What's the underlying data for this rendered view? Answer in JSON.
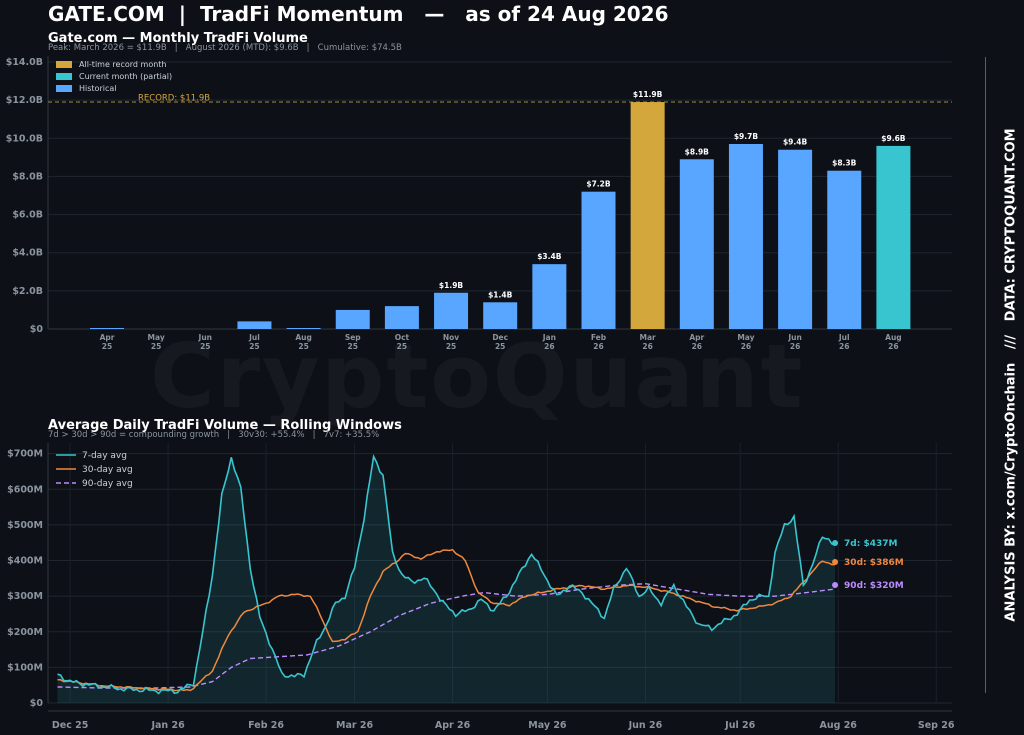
{
  "header": {
    "title": "GATE.COM  |  TradFi Momentum   —   as of 24 Aug 2026",
    "side_text": "ANALYSIS BY: x.com/CryptoOnchain   ///   DATA: CRYPTOQUANT.COM",
    "watermark": "CryptoQuant"
  },
  "colors": {
    "background": "#0d1117",
    "historical": "#58a6ff",
    "record": "#d4a73c",
    "current": "#39c5cf",
    "ma7": "#39c5cf",
    "ma30": "#f0883e",
    "ma90": "#bc8cff"
  },
  "chart_data": [
    {
      "type": "bar",
      "title": "Gate.com — Monthly TradFi Volume",
      "subtitle": "Peak: March 2026 = $11.9B   |   August 2026 (MTD): $9.6B   |   Cumulative: $74.5B",
      "categories": [
        "Apr 25",
        "May 25",
        "Jun 25",
        "Jul 25",
        "Aug 25",
        "Sep 25",
        "Oct 25",
        "Nov 25",
        "Dec 25",
        "Jan 26",
        "Feb 26",
        "Mar 26",
        "Apr 26",
        "May 26",
        "Jun 26",
        "Jul 26",
        "Aug 26"
      ],
      "values": [
        0.04,
        0.0,
        0.0,
        0.4,
        0.05,
        1.0,
        1.2,
        1.9,
        1.4,
        3.4,
        7.2,
        11.9,
        8.9,
        9.7,
        9.4,
        8.3,
        9.6
      ],
      "data_labels": [
        "",
        "",
        "",
        "",
        "",
        "",
        "",
        "$1.9B",
        "$1.4B",
        "$3.4B",
        "$7.2B",
        "$11.9B",
        "$8.9B",
        "$9.7B",
        "$9.4B",
        "$8.3B",
        "$9.6B"
      ],
      "bar_kind": [
        "historical",
        "historical",
        "historical",
        "historical",
        "historical",
        "historical",
        "historical",
        "historical",
        "historical",
        "historical",
        "historical",
        "record",
        "historical",
        "historical",
        "historical",
        "historical",
        "current"
      ],
      "ylim": [
        0,
        14
      ],
      "yticks": [
        0,
        2,
        4,
        6,
        8,
        10,
        12,
        14
      ],
      "ytick_labels": [
        "$0",
        "$2.0B",
        "$4.0B",
        "$6.0B",
        "$8.0B",
        "$10.0B",
        "$12.0B",
        "$14.0B"
      ],
      "record_line": {
        "value": 11.9,
        "label": "RECORD: $11.9B"
      },
      "legend": [
        "All-time record month",
        "Current month (partial)",
        "Historical"
      ],
      "legend_position": "top-left",
      "grid": true
    },
    {
      "type": "line",
      "title": "Average Daily TradFi Volume — Rolling Windows",
      "subtitle": "7d > 30d > 90d = compounding growth   |   30v30: +55.4%   |   7v7: +35.5%",
      "x_start": "2025-12-21",
      "x_end": "2026-08-24",
      "xlim": [
        "2025-12-18",
        "2026-09-30"
      ],
      "xticks": [
        "2025-12-25",
        "2026-01-25",
        "2026-02-25",
        "2026-03-25",
        "2026-04-25",
        "2026-05-25",
        "2026-06-25",
        "2026-07-25",
        "2026-08-25",
        "2026-09-25"
      ],
      "xtick_labels": [
        "Dec 25",
        "Jan 26",
        "Feb 26",
        "Mar 26",
        "Apr 26",
        "May 26",
        "Jun 26",
        "Jul 26",
        "Aug 26",
        "Sep 26"
      ],
      "ylim": [
        0,
        730
      ],
      "yticks": [
        0,
        100,
        200,
        300,
        400,
        500,
        600,
        700
      ],
      "ytick_labels": [
        "$0",
        "$100M",
        "$200M",
        "$300M",
        "$400M",
        "$500M",
        "$600M",
        "$700M"
      ],
      "grid": true,
      "legend_position": "top-left",
      "series": [
        {
          "name": "7-day avg",
          "end_label": "7d: $437M",
          "keypoints": [
            [
              "2025-12-21",
              80
            ],
            [
              "2025-12-25",
              60
            ],
            [
              "2026-01-01",
              50
            ],
            [
              "2026-01-10",
              40
            ],
            [
              "2026-01-20",
              35
            ],
            [
              "2026-01-28",
              33
            ],
            [
              "2026-02-02",
              55
            ],
            [
              "2026-02-05",
              200
            ],
            [
              "2026-02-08",
              360
            ],
            [
              "2026-02-11",
              580
            ],
            [
              "2026-02-14",
              690
            ],
            [
              "2026-02-17",
              600
            ],
            [
              "2026-02-20",
              380
            ],
            [
              "2026-02-23",
              240
            ],
            [
              "2026-02-27",
              150
            ],
            [
              "2026-03-02",
              80
            ],
            [
              "2026-03-06",
              75
            ],
            [
              "2026-03-09",
              80
            ],
            [
              "2026-03-13",
              170
            ],
            [
              "2026-03-16",
              220
            ],
            [
              "2026-03-19",
              280
            ],
            [
              "2026-03-22",
              300
            ],
            [
              "2026-03-25",
              380
            ],
            [
              "2026-03-28",
              520
            ],
            [
              "2026-03-31",
              690
            ],
            [
              "2026-04-03",
              640
            ],
            [
              "2026-04-06",
              420
            ],
            [
              "2026-04-09",
              360
            ],
            [
              "2026-04-12",
              340
            ],
            [
              "2026-04-16",
              350
            ],
            [
              "2026-04-19",
              320
            ],
            [
              "2026-04-22",
              280
            ],
            [
              "2026-04-26",
              250
            ],
            [
              "2026-04-30",
              260
            ],
            [
              "2026-05-04",
              290
            ],
            [
              "2026-05-08",
              260
            ],
            [
              "2026-05-12",
              300
            ],
            [
              "2026-05-16",
              360
            ],
            [
              "2026-05-20",
              420
            ],
            [
              "2026-05-24",
              360
            ],
            [
              "2026-05-28",
              300
            ],
            [
              "2026-06-01",
              330
            ],
            [
              "2026-06-05",
              310
            ],
            [
              "2026-06-09",
              270
            ],
            [
              "2026-06-12",
              240
            ],
            [
              "2026-06-15",
              320
            ],
            [
              "2026-06-19",
              380
            ],
            [
              "2026-06-23",
              300
            ],
            [
              "2026-06-26",
              320
            ],
            [
              "2026-06-30",
              280
            ],
            [
              "2026-07-04",
              330
            ],
            [
              "2026-07-08",
              270
            ],
            [
              "2026-07-12",
              220
            ],
            [
              "2026-07-16",
              210
            ],
            [
              "2026-07-20",
              230
            ],
            [
              "2026-07-24",
              250
            ],
            [
              "2026-07-28",
              290
            ],
            [
              "2026-08-01",
              300
            ],
            [
              "2026-08-03",
              300
            ],
            [
              "2026-08-05",
              420
            ],
            [
              "2026-08-08",
              500
            ],
            [
              "2026-08-11",
              520
            ],
            [
              "2026-08-14",
              330
            ],
            [
              "2026-08-17",
              390
            ],
            [
              "2026-08-20",
              470
            ],
            [
              "2026-08-22",
              460
            ],
            [
              "2026-08-24",
              437
            ]
          ]
        },
        {
          "name": "30-day avg",
          "end_label": "30d: $386M",
          "keypoints": [
            [
              "2025-12-21",
              65
            ],
            [
              "2026-01-05",
              48
            ],
            [
              "2026-01-20",
              40
            ],
            [
              "2026-02-01",
              35
            ],
            [
              "2026-02-08",
              90
            ],
            [
              "2026-02-13",
              190
            ],
            [
              "2026-02-18",
              255
            ],
            [
              "2026-02-25",
              280
            ],
            [
              "2026-03-01",
              300
            ],
            [
              "2026-03-06",
              305
            ],
            [
              "2026-03-11",
              300
            ],
            [
              "2026-03-14",
              250
            ],
            [
              "2026-03-18",
              170
            ],
            [
              "2026-03-22",
              180
            ],
            [
              "2026-03-26",
              200
            ],
            [
              "2026-03-30",
              300
            ],
            [
              "2026-04-03",
              370
            ],
            [
              "2026-04-07",
              395
            ],
            [
              "2026-04-10",
              420
            ],
            [
              "2026-04-15",
              405
            ],
            [
              "2026-04-20",
              425
            ],
            [
              "2026-04-25",
              430
            ],
            [
              "2026-04-29",
              400
            ],
            [
              "2026-05-03",
              310
            ],
            [
              "2026-05-08",
              280
            ],
            [
              "2026-05-13",
              275
            ],
            [
              "2026-05-18",
              300
            ],
            [
              "2026-05-23",
              310
            ],
            [
              "2026-05-28",
              320
            ],
            [
              "2026-06-05",
              330
            ],
            [
              "2026-06-12",
              320
            ],
            [
              "2026-06-19",
              330
            ],
            [
              "2026-06-26",
              325
            ],
            [
              "2026-07-03",
              310
            ],
            [
              "2026-07-10",
              290
            ],
            [
              "2026-07-17",
              270
            ],
            [
              "2026-07-24",
              260
            ],
            [
              "2026-07-31",
              270
            ],
            [
              "2026-08-05",
              280
            ],
            [
              "2026-08-10",
              300
            ],
            [
              "2026-08-15",
              350
            ],
            [
              "2026-08-20",
              400
            ],
            [
              "2026-08-24",
              386
            ]
          ]
        },
        {
          "name": "90-day avg",
          "end_label": "90d: $320M",
          "keypoints": [
            [
              "2025-12-21",
              45
            ],
            [
              "2026-01-05",
              42
            ],
            [
              "2026-01-20",
              42
            ],
            [
              "2026-02-01",
              45
            ],
            [
              "2026-02-08",
              60
            ],
            [
              "2026-02-14",
              100
            ],
            [
              "2026-02-20",
              125
            ],
            [
              "2026-03-01",
              130
            ],
            [
              "2026-03-10",
              135
            ],
            [
              "2026-03-20",
              160
            ],
            [
              "2026-03-30",
              200
            ],
            [
              "2026-04-08",
              245
            ],
            [
              "2026-04-18",
              280
            ],
            [
              "2026-04-28",
              300
            ],
            [
              "2026-05-05",
              310
            ],
            [
              "2026-05-15",
              300
            ],
            [
              "2026-05-25",
              305
            ],
            [
              "2026-06-05",
              320
            ],
            [
              "2026-06-15",
              330
            ],
            [
              "2026-06-25",
              335
            ],
            [
              "2026-07-05",
              320
            ],
            [
              "2026-07-15",
              305
            ],
            [
              "2026-07-25",
              300
            ],
            [
              "2026-08-05",
              300
            ],
            [
              "2026-08-15",
              310
            ],
            [
              "2026-08-24",
              320
            ]
          ]
        }
      ]
    }
  ]
}
